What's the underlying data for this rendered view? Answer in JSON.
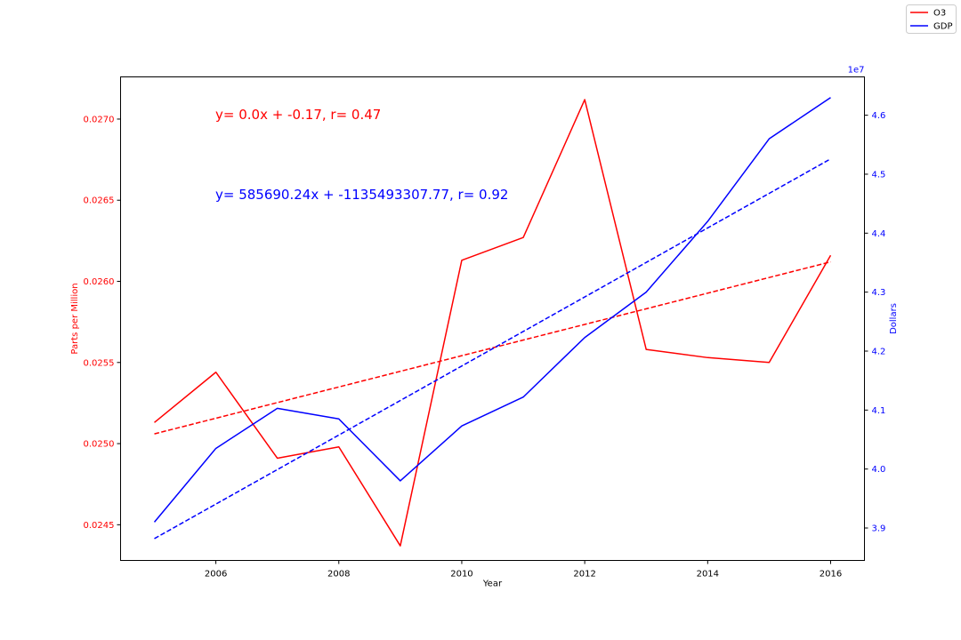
{
  "chart_data": {
    "type": "line",
    "xlabel": "Year",
    "x": [
      2005,
      2006,
      2007,
      2008,
      2009,
      2010,
      2011,
      2012,
      2013,
      2014,
      2015,
      2016
    ],
    "xlim": [
      2004.45,
      2016.55
    ],
    "x_ticks": [
      2006,
      2008,
      2010,
      2012,
      2014,
      2016
    ],
    "grid": false,
    "legend_position": "top-right",
    "left_axis": {
      "label": "Parts per Million",
      "color": "#ff0000",
      "ylim": [
        0.02428,
        0.02726
      ],
      "ticks": [
        0.0245,
        0.025,
        0.0255,
        0.026,
        0.0265,
        0.027
      ],
      "tick_labels": [
        "0.0245",
        "0.0250",
        "0.0255",
        "0.0260",
        "0.0265",
        "0.0270"
      ]
    },
    "right_axis": {
      "label": "Dollars",
      "color": "#0000ff",
      "offset_text": "1e7",
      "ylim": [
        38450000,
        46650000
      ],
      "ticks": [
        39000000,
        40000000,
        41000000,
        42000000,
        43000000,
        44000000,
        45000000,
        46000000
      ],
      "tick_labels": [
        "3.9",
        "4.0",
        "4.1",
        "4.2",
        "4.3",
        "4.4",
        "4.5",
        "4.6"
      ]
    },
    "series": [
      {
        "name": "O3",
        "axis": "left",
        "color": "#ff0000",
        "values": [
          0.02513,
          0.02544,
          0.02491,
          0.02498,
          0.02437,
          0.02613,
          0.02627,
          0.02712,
          0.02558,
          0.02553,
          0.0255,
          0.02616
        ],
        "trend": [
          0.02506,
          0.02612
        ]
      },
      {
        "axis": "right",
        "color": "#0000ff",
        "values": [
          39100000,
          40350000,
          41030000,
          40850000,
          39800000,
          40730000,
          41220000,
          42230000,
          43000000,
          44200000,
          45600000,
          46300000
        ],
        "trend": [
          38820000,
          45260000
        ]
      }
    ],
    "legend": [
      {
        "label": "O3",
        "color": "#ff0000"
      },
      {
        "label": "GDP",
        "color": "#0000ff"
      }
    ],
    "annotations": [
      {
        "text": "y= 0.0x + -0.17, r= 0.47",
        "color": "#ff0000"
      },
      {
        "text": "y= 585690.24x + -1135493307.77, r= 0.92",
        "color": "#0000ff"
      }
    ]
  }
}
